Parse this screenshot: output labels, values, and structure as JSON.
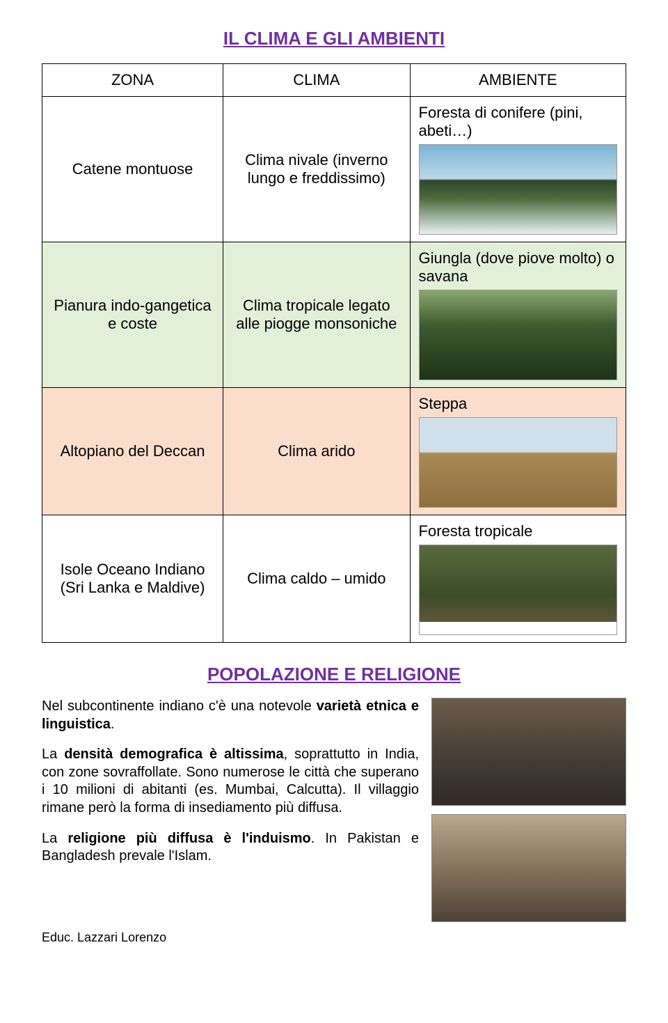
{
  "title": "IL CLIMA E GLI AMBIENTI",
  "title_color": "#7030a0",
  "table": {
    "headers": {
      "zona": "ZONA",
      "clima": "CLIMA",
      "ambiente": "AMBIENTE"
    },
    "rows": [
      {
        "zona": "Catene montuose",
        "clima": "Clima nivale (inverno lungo e freddissimo)",
        "ambiente": "Foresta di conifere (pini, abeti…)",
        "bg": "#ffffff",
        "img_class": "img-mountains"
      },
      {
        "zona": "Pianura indo-gangetica e coste",
        "clima": "Clima tropicale legato alle piogge monsoniche",
        "ambiente": "Giungla (dove piove molto) o savana",
        "bg": "#e2f0d8",
        "img_class": "img-jungle"
      },
      {
        "zona": "Altopiano del Deccan",
        "clima": "Clima arido",
        "ambiente": "Steppa",
        "bg": "#fadecb",
        "img_class": "img-steppe"
      },
      {
        "zona": "Isole Oceano Indiano (Sri Lanka e Maldive)",
        "clima": "Clima caldo – umido",
        "ambiente": "Foresta tropicale",
        "bg": "#ffffff",
        "img_class": "img-tropical"
      }
    ]
  },
  "section2": {
    "title": "POPOLAZIONE E RELIGIONE",
    "title_color": "#7030a0",
    "p1_a": "Nel subcontinente indiano c'è una notevole ",
    "p1_b": "varietà etnica e linguistica",
    "p1_c": ".",
    "p2_a": "La ",
    "p2_b": "densità demografica è altissima",
    "p2_c": ", soprattutto in India, con zone sovraffollate. Sono numerose le città che superano i 10 milioni di abitanti (es. Mumbai, Calcutta). Il villaggio rimane però la forma di insediamento più diffusa.",
    "p3_a": "La ",
    "p3_b": "religione più diffusa è l'induismo",
    "p3_c": ". In Pakistan e Bangladesh prevale l'Islam."
  },
  "footer": "Educ. Lazzari Lorenzo"
}
